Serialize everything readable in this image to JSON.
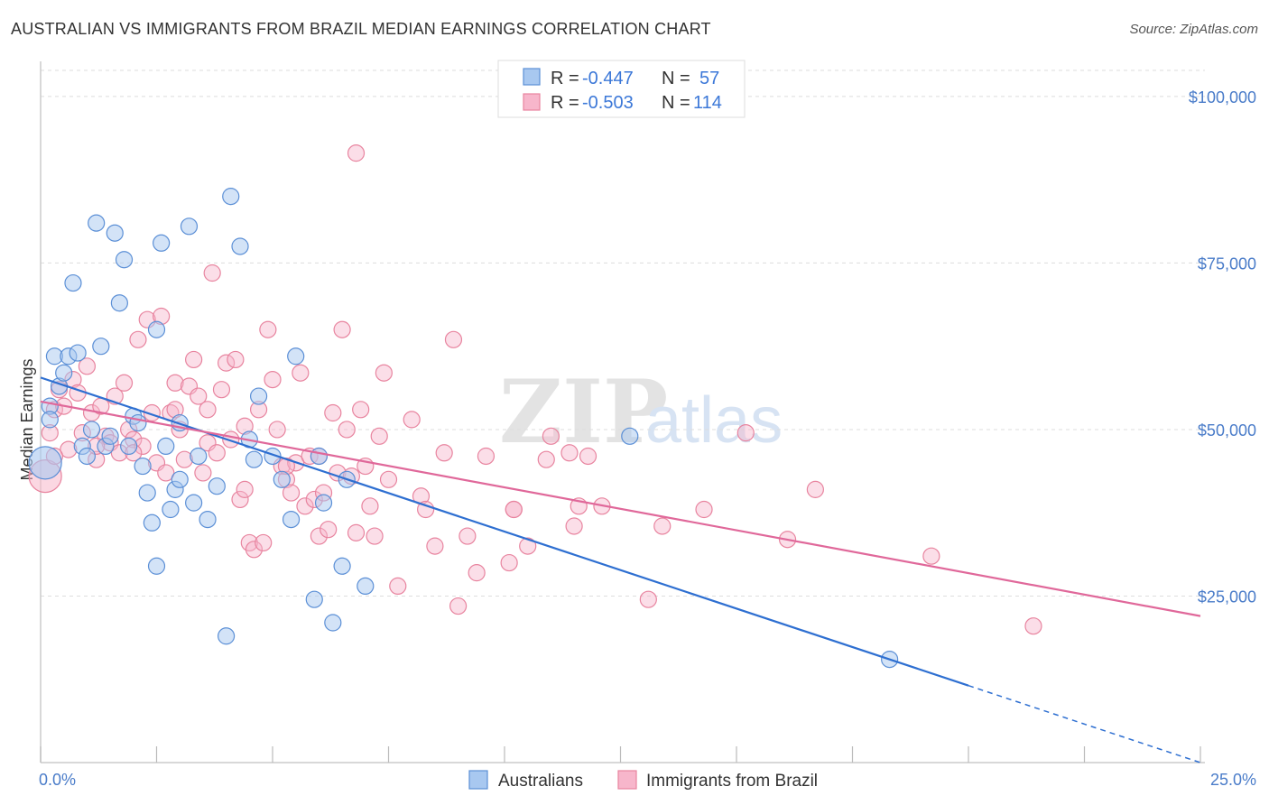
{
  "title": "AUSTRALIAN VS IMMIGRANTS FROM BRAZIL MEDIAN EARNINGS CORRELATION CHART",
  "source": "Source: ZipAtlas.com",
  "watermark": {
    "zip": "ZIP",
    "atlas": "atlas"
  },
  "colors": {
    "blue_fill": "#a8c8f0",
    "blue_stroke": "#5b8fd6",
    "blue_line": "#2e6fd1",
    "pink_fill": "#f7b6cb",
    "pink_stroke": "#e8849f",
    "pink_line": "#e0689a",
    "grid": "#dddddd",
    "axis_text": "#4a7cc9"
  },
  "legend": {
    "rows": [
      {
        "r_label": "R =",
        "r_value": "-0.447",
        "n_label": "N =",
        "n_value": "57"
      },
      {
        "r_label": "R =",
        "r_value": "-0.503",
        "n_label": "N =",
        "n_value": "114"
      }
    ]
  },
  "bottom_legend": {
    "series1": "Australians",
    "series2": "Immigrants from Brazil"
  },
  "chart_data": {
    "type": "scatter",
    "title": "AUSTRALIAN VS IMMIGRANTS FROM BRAZIL MEDIAN EARNINGS CORRELATION CHART",
    "xlabel": "",
    "ylabel": "Median Earnings",
    "xlim": [
      0,
      25
    ],
    "ylim": [
      0,
      105000
    ],
    "x_tick_labels": [
      "0.0%",
      "25.0%"
    ],
    "y_ticks": [
      25000,
      50000,
      75000,
      100000
    ],
    "y_tick_labels": [
      "$25,000",
      "$50,000",
      "$75,000",
      "$100,000"
    ],
    "grid": true,
    "series": [
      {
        "name": "Australians",
        "r": -0.447,
        "n": 57,
        "trend": {
          "x0": 0,
          "y0": 57800,
          "x1": 25,
          "y1": 0,
          "solid_until_x": 20
        },
        "points": [
          [
            0.1,
            45000
          ],
          [
            0.2,
            53500
          ],
          [
            0.2,
            51500
          ],
          [
            0.3,
            61000
          ],
          [
            0.4,
            56500
          ],
          [
            0.5,
            58500
          ],
          [
            0.6,
            61000
          ],
          [
            0.7,
            72000
          ],
          [
            0.8,
            61500
          ],
          [
            0.9,
            47500
          ],
          [
            1.0,
            46000
          ],
          [
            1.1,
            50000
          ],
          [
            1.2,
            81000
          ],
          [
            1.3,
            62500
          ],
          [
            1.4,
            47500
          ],
          [
            1.5,
            49000
          ],
          [
            1.6,
            79500
          ],
          [
            1.7,
            69000
          ],
          [
            1.8,
            75500
          ],
          [
            1.9,
            47500
          ],
          [
            2.0,
            52000
          ],
          [
            2.1,
            51000
          ],
          [
            2.2,
            44500
          ],
          [
            2.3,
            40500
          ],
          [
            2.4,
            36000
          ],
          [
            2.5,
            65000
          ],
          [
            2.5,
            29500
          ],
          [
            2.6,
            78000
          ],
          [
            2.7,
            47500
          ],
          [
            2.8,
            38000
          ],
          [
            2.9,
            41000
          ],
          [
            3.0,
            42500
          ],
          [
            3.2,
            80500
          ],
          [
            3.3,
            39000
          ],
          [
            3.4,
            46000
          ],
          [
            3.6,
            36500
          ],
          [
            3.8,
            41500
          ],
          [
            4.0,
            19000
          ],
          [
            4.1,
            85000
          ],
          [
            4.3,
            77500
          ],
          [
            4.5,
            48500
          ],
          [
            4.6,
            45500
          ],
          [
            4.7,
            55000
          ],
          [
            5.0,
            46000
          ],
          [
            5.2,
            42500
          ],
          [
            5.4,
            36500
          ],
          [
            5.5,
            61000
          ],
          [
            5.9,
            24500
          ],
          [
            6.0,
            46000
          ],
          [
            6.1,
            39000
          ],
          [
            6.3,
            21000
          ],
          [
            6.5,
            29500
          ],
          [
            6.6,
            42500
          ],
          [
            7.0,
            26500
          ],
          [
            12.7,
            49000
          ],
          [
            18.3,
            15500
          ],
          [
            3.0,
            51000
          ]
        ]
      },
      {
        "name": "Immigrants from Brazil",
        "r": -0.503,
        "n": 114,
        "trend": {
          "x0": 0,
          "y0": 54200,
          "x1": 25,
          "y1": 22000
        },
        "points": [
          [
            0.1,
            43000
          ],
          [
            0.2,
            49500
          ],
          [
            0.3,
            53000
          ],
          [
            0.4,
            56000
          ],
          [
            0.5,
            53500
          ],
          [
            0.6,
            47000
          ],
          [
            0.7,
            57500
          ],
          [
            0.8,
            55500
          ],
          [
            0.9,
            49500
          ],
          [
            1.0,
            59500
          ],
          [
            1.1,
            52500
          ],
          [
            1.2,
            45500
          ],
          [
            1.3,
            53500
          ],
          [
            1.4,
            49000
          ],
          [
            1.5,
            48000
          ],
          [
            1.6,
            55000
          ],
          [
            1.7,
            46500
          ],
          [
            1.8,
            57000
          ],
          [
            1.9,
            50000
          ],
          [
            2.0,
            48500
          ],
          [
            2.1,
            63500
          ],
          [
            2.2,
            47500
          ],
          [
            2.3,
            66500
          ],
          [
            2.4,
            52500
          ],
          [
            2.5,
            45000
          ],
          [
            2.6,
            67000
          ],
          [
            2.7,
            43500
          ],
          [
            2.8,
            52500
          ],
          [
            2.9,
            57000
          ],
          [
            3.0,
            50000
          ],
          [
            3.1,
            45500
          ],
          [
            3.2,
            56500
          ],
          [
            3.3,
            60500
          ],
          [
            3.4,
            55000
          ],
          [
            3.5,
            43500
          ],
          [
            3.6,
            48000
          ],
          [
            3.7,
            73500
          ],
          [
            3.8,
            46500
          ],
          [
            3.9,
            56000
          ],
          [
            4.0,
            60000
          ],
          [
            4.1,
            48500
          ],
          [
            4.2,
            60500
          ],
          [
            4.3,
            39500
          ],
          [
            4.4,
            41000
          ],
          [
            4.5,
            33000
          ],
          [
            4.6,
            32000
          ],
          [
            4.7,
            53000
          ],
          [
            4.8,
            33000
          ],
          [
            4.9,
            65000
          ],
          [
            5.0,
            57500
          ],
          [
            5.1,
            50000
          ],
          [
            5.2,
            44500
          ],
          [
            5.3,
            42500
          ],
          [
            5.4,
            40500
          ],
          [
            5.5,
            45000
          ],
          [
            5.6,
            58500
          ],
          [
            5.7,
            38500
          ],
          [
            5.8,
            46000
          ],
          [
            5.9,
            39500
          ],
          [
            6.0,
            34000
          ],
          [
            6.1,
            40500
          ],
          [
            6.2,
            35000
          ],
          [
            6.3,
            52500
          ],
          [
            6.4,
            43500
          ],
          [
            6.5,
            65000
          ],
          [
            6.6,
            50000
          ],
          [
            6.7,
            43000
          ],
          [
            6.8,
            34500
          ],
          [
            6.9,
            53000
          ],
          [
            7.0,
            44500
          ],
          [
            7.1,
            38500
          ],
          [
            7.2,
            34000
          ],
          [
            7.3,
            49000
          ],
          [
            7.4,
            58500
          ],
          [
            7.5,
            42500
          ],
          [
            7.7,
            26500
          ],
          [
            8.0,
            51500
          ],
          [
            8.2,
            40000
          ],
          [
            8.3,
            38000
          ],
          [
            8.5,
            32500
          ],
          [
            8.7,
            46500
          ],
          [
            8.9,
            63500
          ],
          [
            9.0,
            23500
          ],
          [
            9.2,
            34000
          ],
          [
            9.4,
            28500
          ],
          [
            9.6,
            46000
          ],
          [
            10.1,
            30000
          ],
          [
            10.2,
            38000
          ],
          [
            10.5,
            32500
          ],
          [
            10.9,
            45500
          ],
          [
            11.0,
            49000
          ],
          [
            11.4,
            46500
          ],
          [
            11.5,
            35500
          ],
          [
            11.6,
            38500
          ],
          [
            11.8,
            46000
          ],
          [
            12.1,
            38500
          ],
          [
            13.1,
            24500
          ],
          [
            13.4,
            35500
          ],
          [
            14.3,
            38000
          ],
          [
            15.2,
            49500
          ],
          [
            16.1,
            33500
          ],
          [
            16.7,
            41000
          ],
          [
            19.2,
            31000
          ],
          [
            21.4,
            20500
          ],
          [
            6.8,
            91500
          ],
          [
            3.6,
            53000
          ],
          [
            2.9,
            53000
          ],
          [
            2.0,
            46500
          ],
          [
            1.2,
            47500
          ],
          [
            0.3,
            46000
          ],
          [
            4.4,
            50500
          ],
          [
            5.3,
            44500
          ],
          [
            6.0,
            46000
          ],
          [
            10.2,
            38000
          ]
        ]
      }
    ]
  }
}
